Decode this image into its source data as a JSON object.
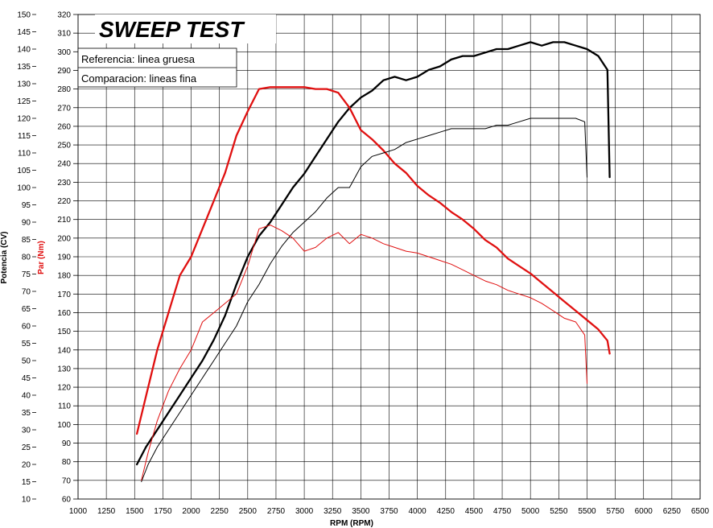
{
  "chart_data": {
    "type": "line",
    "title": "SWEEP TEST",
    "xlabel": "RPM (RPM)",
    "ylabel_left": "Potencia (CV)",
    "ylabel_right": "Par (Nm)",
    "xlim": [
      1000,
      6500
    ],
    "ylim_power": [
      10,
      150
    ],
    "ylim_torque": [
      60,
      320
    ],
    "x_ticks": [
      1000,
      1250,
      1500,
      1750,
      2000,
      2250,
      2500,
      2750,
      3000,
      3250,
      3500,
      3750,
      4000,
      4250,
      4500,
      4750,
      5000,
      5250,
      5500,
      5750,
      6000,
      6250,
      6500
    ],
    "power_ticks": [
      150,
      145,
      140,
      135,
      130,
      125,
      120,
      115,
      110,
      105,
      100,
      95,
      90,
      85,
      80,
      75,
      70,
      65,
      60,
      55,
      50,
      45,
      40,
      35,
      30,
      25,
      20,
      15,
      10
    ],
    "torque_ticks": [
      320,
      310,
      300,
      290,
      280,
      270,
      260,
      250,
      240,
      230,
      220,
      210,
      200,
      190,
      180,
      170,
      160,
      150,
      140,
      130,
      120,
      110,
      100,
      90,
      80,
      70,
      60
    ],
    "grid": true,
    "legend": {
      "position": "top-left",
      "entries": [
        "Referencia: linea gruesa",
        "Comparacion: lineas fina"
      ]
    },
    "colors": {
      "power": "#000000",
      "torque": "#e01010"
    },
    "series": [
      {
        "quantity": "power",
        "axis": "power",
        "weight": "thick",
        "x": [
          1520,
          1600,
          1700,
          1800,
          1900,
          2000,
          2100,
          2200,
          2300,
          2400,
          2500,
          2600,
          2700,
          2800,
          2900,
          3000,
          3100,
          3200,
          3300,
          3400,
          3500,
          3600,
          3700,
          3800,
          3900,
          4000,
          4100,
          4200,
          4300,
          4400,
          4500,
          4600,
          4700,
          4800,
          4900,
          5000,
          5100,
          5200,
          5300,
          5400,
          5500,
          5600,
          5680,
          5700
        ],
        "y": [
          20,
          25,
          30,
          35,
          40,
          45,
          50,
          56,
          63,
          72,
          80,
          86,
          90,
          95,
          100,
          104,
          109,
          114,
          119,
          123,
          126,
          128,
          131,
          132,
          131,
          132,
          134,
          135,
          137,
          138,
          138,
          139,
          140,
          140,
          141,
          142,
          141,
          142,
          142,
          141,
          140,
          138,
          134,
          103
        ]
      },
      {
        "quantity": "torque",
        "axis": "torque",
        "weight": "thick",
        "x": [
          1520,
          1600,
          1700,
          1800,
          1900,
          2000,
          2100,
          2200,
          2300,
          2400,
          2500,
          2600,
          2700,
          2800,
          2900,
          3000,
          3100,
          3200,
          3300,
          3400,
          3500,
          3600,
          3700,
          3800,
          3900,
          4000,
          4100,
          4200,
          4300,
          4400,
          4500,
          4600,
          4700,
          4800,
          4900,
          5000,
          5100,
          5200,
          5300,
          5400,
          5500,
          5600,
          5680,
          5700
        ],
        "y": [
          95,
          115,
          140,
          160,
          180,
          190,
          205,
          220,
          235,
          255,
          268,
          280,
          281,
          281,
          281,
          281,
          280,
          280,
          278,
          270,
          258,
          253,
          247,
          240,
          235,
          228,
          223,
          219,
          214,
          210,
          205,
          199,
          195,
          189,
          185,
          181,
          176,
          171,
          166,
          161,
          156,
          151,
          145,
          138
        ]
      },
      {
        "quantity": "power",
        "axis": "power",
        "weight": "thin",
        "x": [
          1560,
          1620,
          1700,
          1800,
          1900,
          2000,
          2100,
          2200,
          2300,
          2400,
          2500,
          2600,
          2700,
          2800,
          2900,
          3000,
          3100,
          3200,
          3300,
          3400,
          3500,
          3600,
          3700,
          3800,
          3900,
          4000,
          4100,
          4200,
          4300,
          4400,
          4500,
          4600,
          4700,
          4800,
          4900,
          5000,
          5100,
          5200,
          5300,
          5400,
          5480,
          5500
        ],
        "y": [
          15,
          20,
          25,
          30,
          35,
          40,
          45,
          50,
          55,
          60,
          67,
          72,
          78,
          83,
          87,
          90,
          93,
          97,
          100,
          100,
          106,
          109,
          110,
          111,
          113,
          114,
          115,
          116,
          117,
          117,
          117,
          117,
          118,
          118,
          119,
          120,
          120,
          120,
          120,
          120,
          119,
          103
        ]
      },
      {
        "quantity": "torque",
        "axis": "torque",
        "weight": "thin",
        "x": [
          1560,
          1620,
          1700,
          1800,
          1900,
          2000,
          2100,
          2200,
          2300,
          2400,
          2500,
          2600,
          2700,
          2800,
          2900,
          3000,
          3100,
          3200,
          3300,
          3400,
          3500,
          3600,
          3700,
          3800,
          3900,
          4000,
          4100,
          4200,
          4300,
          4400,
          4500,
          4600,
          4700,
          4800,
          4900,
          5000,
          5100,
          5200,
          5300,
          5400,
          5480,
          5500
        ],
        "y": [
          70,
          85,
          102,
          118,
          130,
          140,
          155,
          160,
          165,
          170,
          185,
          205,
          207,
          204,
          200,
          193,
          195,
          200,
          203,
          197,
          202,
          200,
          197,
          195,
          193,
          192,
          190,
          188,
          186,
          183,
          180,
          177,
          175,
          172,
          170,
          168,
          165,
          161,
          157,
          155,
          148,
          122
        ]
      }
    ]
  }
}
